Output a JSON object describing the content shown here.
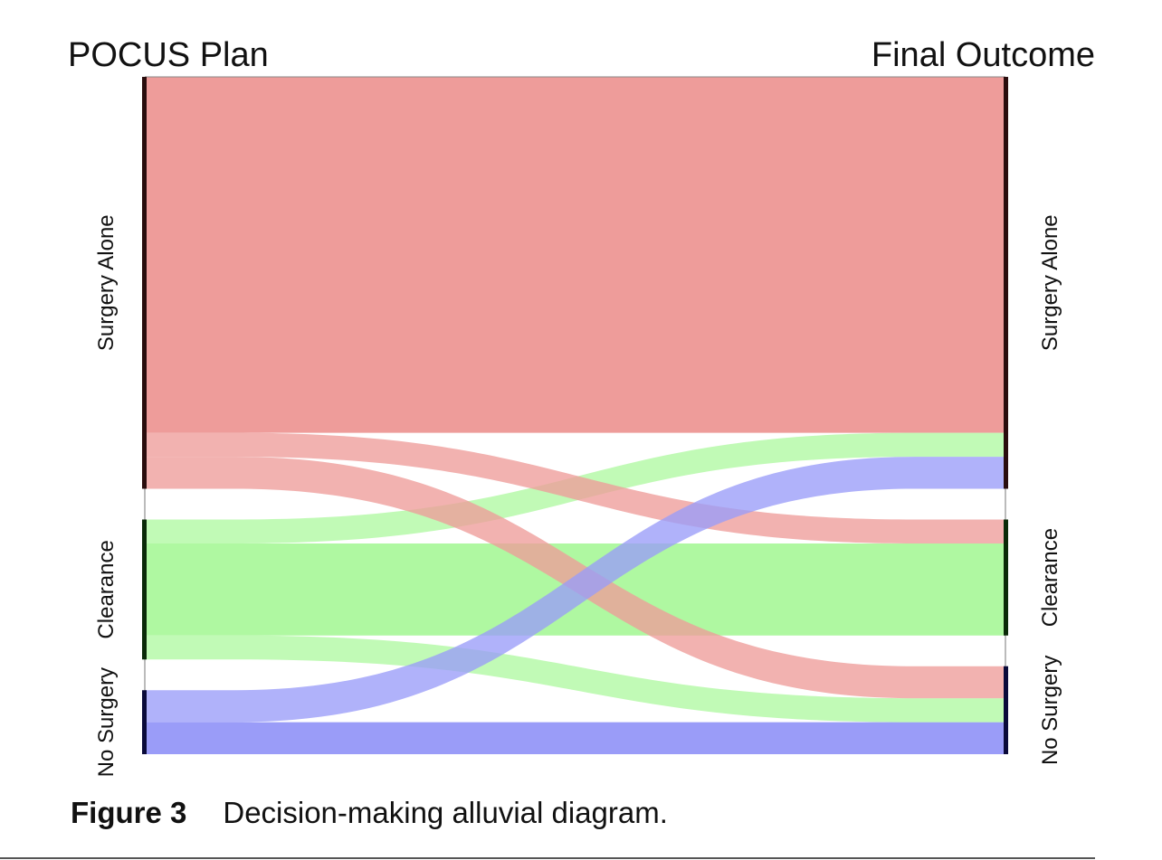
{
  "diagram": {
    "type": "alluvial",
    "left_axis_title": "POCUS Plan",
    "right_axis_title": "Final Outcome",
    "categories": [
      {
        "id": "surgery_alone",
        "label": "Surgery Alone",
        "color": "#ee9c9a",
        "bar_color": "#2a0d0d"
      },
      {
        "id": "clearance",
        "label": "Clearance",
        "color": "#aff8a1",
        "bar_color": "#0a2a08"
      },
      {
        "id": "no_surgery",
        "label": "No Surgery",
        "color": "#9a9cf8",
        "bar_color": "#0a0a3a"
      }
    ],
    "flows": [
      {
        "from": "surgery_alone",
        "to": "surgery_alone",
        "value": 89
      },
      {
        "from": "surgery_alone",
        "to": "clearance",
        "value": 6
      },
      {
        "from": "surgery_alone",
        "to": "no_surgery",
        "value": 8
      },
      {
        "from": "clearance",
        "to": "surgery_alone",
        "value": 6
      },
      {
        "from": "clearance",
        "to": "clearance",
        "value": 23
      },
      {
        "from": "clearance",
        "to": "no_surgery",
        "value": 6
      },
      {
        "from": "no_surgery",
        "to": "surgery_alone",
        "value": 8
      },
      {
        "from": "no_surgery",
        "to": "no_surgery",
        "value": 8
      }
    ]
  },
  "caption": {
    "figure_number": "Figure 3",
    "text": "Decision-making alluvial diagram."
  }
}
